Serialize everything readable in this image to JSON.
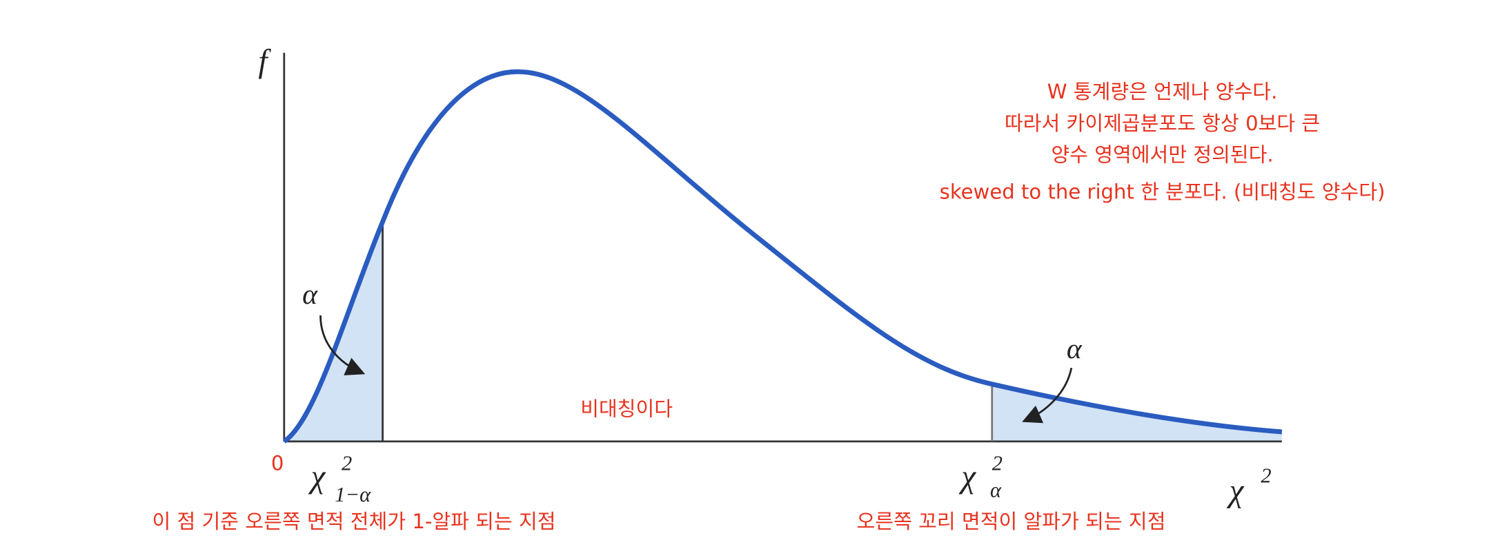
{
  "axes": {
    "y_label": "f",
    "x_label": "χ",
    "x_label_sup": "2",
    "origin": "0"
  },
  "critical_points": [
    {
      "symbol": "χ",
      "sup": "2",
      "sub": "1−α"
    },
    {
      "symbol": "χ",
      "sup": "2",
      "sub": "α"
    }
  ],
  "tail_labels": [
    "α",
    "α"
  ],
  "notes": [
    "W 통계량은 언제나 양수다.",
    "따라서 카이제곱분포도 항상 0보다 큰",
    "양수 영역에서만 정의된다."
  ],
  "skew_note": "skewed to the right 한 분포다. (비대칭도 양수다)",
  "middle_note": "비대칭이다",
  "bottom_notes": [
    "이 점 기준 오른쪽 면적 전체가 1-알파 되는 지점",
    "오른쪽 꼬리 면적이 알파가 되는 지점"
  ]
}
